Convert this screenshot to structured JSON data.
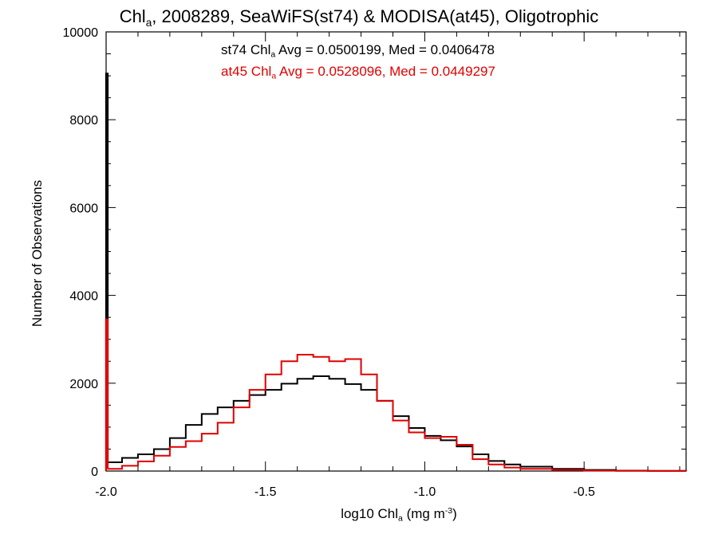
{
  "title": {
    "main": "Chl",
    "sub": "a",
    "rest": ", 2008289, SeaWiFS(st74) & MODISA(at45), Oligotrophic"
  },
  "annotations": [
    {
      "prefix": "st74 Chl",
      "sub": "a",
      "rest": " Avg = 0.0500199, Med = 0.0406478",
      "color": "#000000"
    },
    {
      "prefix": "at45 Chl",
      "sub": "a",
      "rest": " Avg = 0.0528096, Med = 0.0449297",
      "color": "#e00000"
    }
  ],
  "xlabel": {
    "main": "log10 Chl",
    "sub": "a",
    "unit_pre": " (mg m",
    "sup": "-3",
    "unit_post": ")"
  },
  "ylabel": "Number of Observations",
  "chart_data": {
    "type": "line",
    "step": true,
    "title": "Chl_a, 2008289, SeaWiFS(st74) & MODISA(at45), Oligotrophic",
    "xlabel": "log10 Chl_a (mg m^-3)",
    "ylabel": "Number of Observations",
    "xlim": [
      -2.0,
      -0.18
    ],
    "ylim": [
      0,
      10000
    ],
    "x_ticks": [
      -2.0,
      -1.5,
      -1.0,
      -0.5
    ],
    "x_tick_labels": [
      "-2.0",
      "-1.5",
      "-1.0",
      "-0.5"
    ],
    "y_ticks": [
      0,
      2000,
      4000,
      6000,
      8000,
      10000
    ],
    "y_tick_labels": [
      "0",
      "2000",
      "4000",
      "6000",
      "8000",
      "10000"
    ],
    "series": [
      {
        "name": "st74",
        "color": "#000000",
        "spike": {
          "x": -1.995,
          "y": 9050
        },
        "x": [
          -1.99,
          -1.95,
          -1.9,
          -1.85,
          -1.8,
          -1.75,
          -1.7,
          -1.65,
          -1.6,
          -1.55,
          -1.5,
          -1.45,
          -1.4,
          -1.35,
          -1.3,
          -1.25,
          -1.2,
          -1.15,
          -1.1,
          -1.05,
          -1.0,
          -0.95,
          -0.9,
          -0.85,
          -0.8,
          -0.75,
          -0.7,
          -0.6,
          -0.5,
          -0.4,
          -0.3,
          -0.18
        ],
        "y": [
          200,
          300,
          380,
          500,
          750,
          1050,
          1300,
          1450,
          1600,
          1730,
          1850,
          1990,
          2100,
          2160,
          2100,
          1980,
          1850,
          1600,
          1250,
          980,
          800,
          700,
          560,
          380,
          230,
          150,
          100,
          50,
          25,
          10,
          5,
          0
        ]
      },
      {
        "name": "at45",
        "color": "#e00000",
        "spike": {
          "x": -1.995,
          "y": 3450
        },
        "x": [
          -1.99,
          -1.95,
          -1.9,
          -1.85,
          -1.8,
          -1.75,
          -1.7,
          -1.65,
          -1.6,
          -1.55,
          -1.5,
          -1.45,
          -1.4,
          -1.35,
          -1.3,
          -1.25,
          -1.2,
          -1.15,
          -1.1,
          -1.05,
          -1.0,
          -0.95,
          -0.9,
          -0.85,
          -0.8,
          -0.75,
          -0.7,
          -0.6,
          -0.5,
          -0.4,
          -0.3,
          -0.18
        ],
        "y": [
          50,
          120,
          220,
          350,
          550,
          680,
          850,
          1100,
          1450,
          1850,
          2200,
          2500,
          2650,
          2600,
          2500,
          2550,
          2200,
          1600,
          1150,
          880,
          750,
          780,
          600,
          270,
          150,
          80,
          50,
          25,
          10,
          5,
          2,
          0
        ]
      }
    ]
  }
}
